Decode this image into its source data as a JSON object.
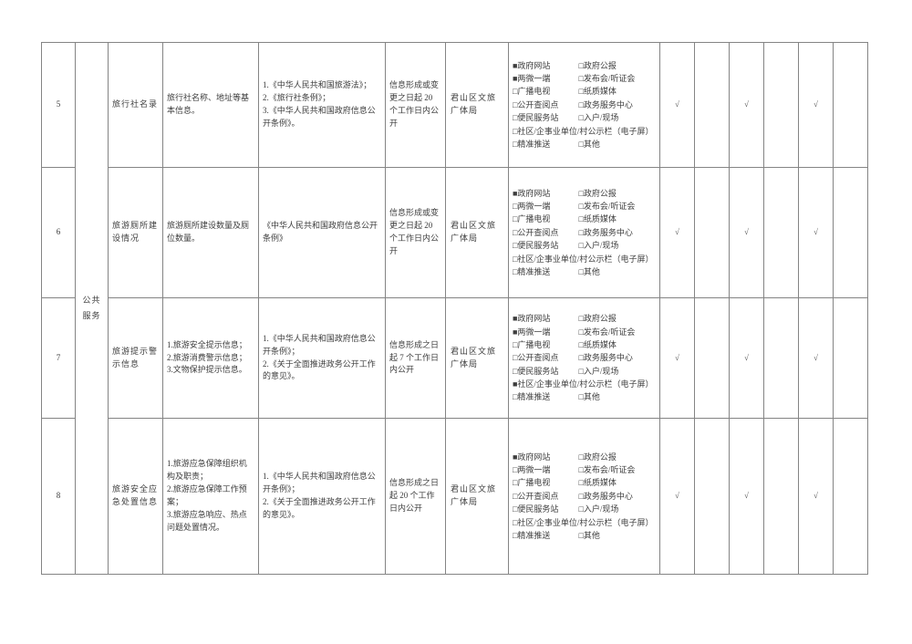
{
  "page": {
    "background": "#ffffff"
  },
  "table": {
    "border_color": "#848484",
    "text_color": "#3d3d3d",
    "category_label": "公共服务",
    "checkmark_glyph": "√",
    "checkbox_checked_glyph": "■",
    "checkbox_unchecked_glyph": "□",
    "channels": [
      {
        "label": "政府网站"
      },
      {
        "label": "政府公报"
      },
      {
        "label": "两微一端"
      },
      {
        "label": "发布会/听证会"
      },
      {
        "label": "广播电视"
      },
      {
        "label": "纸质媒体"
      },
      {
        "label": "公开查阅点"
      },
      {
        "label": "政务服务中心"
      },
      {
        "label": "便民服务站"
      },
      {
        "label": "入户/现场"
      },
      {
        "label": "社区/企事业单位/村公示栏（电子屏）",
        "full": true
      },
      {
        "label": "精准推送"
      },
      {
        "label": "其他"
      }
    ],
    "rows": [
      {
        "num": "5",
        "item": "旅行社名录",
        "content": "旅行社名称、地址等基本信息。",
        "legal": "1.《中华人民共和国旅游法》；\n2.《旅行社条例》；\n3.《中华人民共和国政府信息公开条例》。",
        "timing": "信息形成或变更之日起 20 个工作日内公开",
        "department": "君山区文旅广体局",
        "channels_checked": [
          "政府网站",
          "两微一端"
        ],
        "marks": [
          "√",
          "",
          "√",
          "",
          "√",
          ""
        ]
      },
      {
        "num": "6",
        "item": "旅游厕所建设情况",
        "content": "旅游厕所建设数量及厕位数量。",
        "legal": "《中华人民共和国政府信息公开条例》",
        "timing": "信息形成或变更之日起 20 个工作日内公开",
        "department": "君山区文旅广体局",
        "channels_checked": [
          "政府网站"
        ],
        "marks": [
          "√",
          "",
          "√",
          "",
          "√",
          ""
        ]
      },
      {
        "num": "7",
        "item": "旅游提示警示信息",
        "content": "1.旅游安全提示信息；\n2.旅游消费警示信息；\n3.文物保护提示信息。",
        "legal": "1.《中华人民共和国政府信息公开条例》；\n2.《关于全面推进政务公开工作的意见》。",
        "timing": "信息形成之日起 7 个工作日内公开",
        "department": "君山区文旅广体局",
        "channels_checked": [
          "政府网站",
          "两微一端",
          "社区/企事业单位/村公示栏（电子屏）"
        ],
        "marks": [
          "√",
          "",
          "√",
          "",
          "√",
          ""
        ]
      },
      {
        "num": "8",
        "item": "旅游安全应急处置信息",
        "content": "1.旅游应急保障组织机构及职责；\n2.旅游应急保障工作预案；\n3.旅游应急响应、热点问题处置情况。",
        "legal": "1.《中华人民共和国政府信息公开条例》；\n2.《关于全面推进政务公开工作的意见》。",
        "timing": "信息形成之日起 20 个工作日内公开",
        "department": "君山区文旅广体局",
        "channels_checked": [
          "政府网站"
        ],
        "marks": [
          "√",
          "",
          "√",
          "",
          "√",
          ""
        ]
      }
    ]
  }
}
